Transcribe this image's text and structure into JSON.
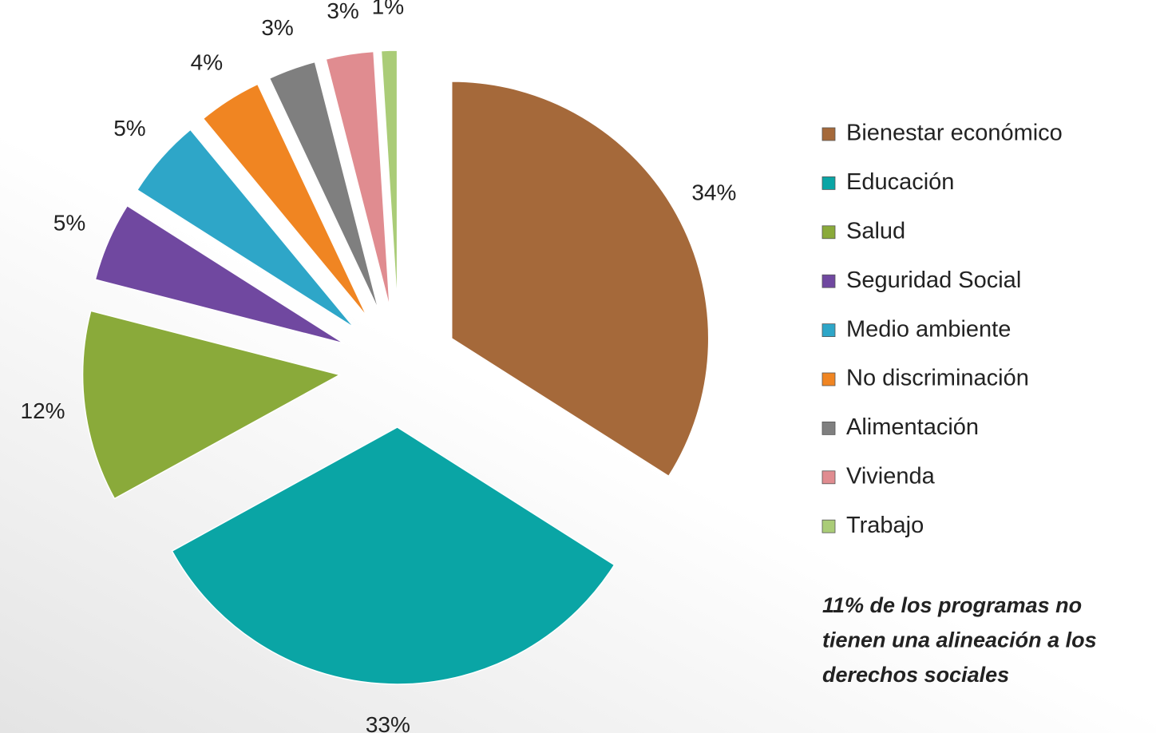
{
  "chart_data": {
    "type": "pie",
    "categories": [
      "Bienestar económico",
      "Educación",
      "Salud",
      "Seguridad Social",
      "Medio ambiente",
      "No discriminación",
      "Alimentación",
      "Vivienda",
      "Trabajo"
    ],
    "values": [
      34,
      33,
      12,
      5,
      5,
      4,
      3,
      3,
      1
    ],
    "value_labels": [
      "34%",
      "33%",
      "12%",
      "5%",
      "5%",
      "4%",
      "3%",
      "3%",
      "1%"
    ],
    "colors": [
      "#a5693a",
      "#0aa5a5",
      "#8aaa3a",
      "#7048a0",
      "#2ea6c8",
      "#f08522",
      "#7f7f7f",
      "#e08c90",
      "#aacc77"
    ],
    "legend": "right",
    "annotation": [
      "11% de los programas no",
      "tienen una alineación a los",
      "derechos sociales"
    ]
  }
}
